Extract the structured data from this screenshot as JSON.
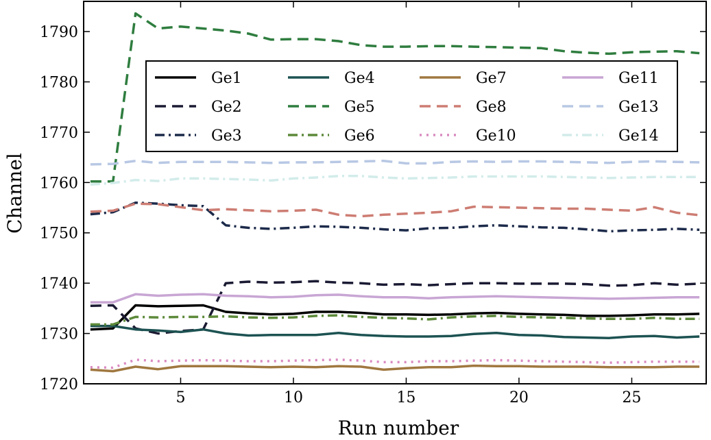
{
  "chart_data": {
    "type": "line",
    "xlabel": "Run number",
    "ylabel": "Channel",
    "xlim": [
      0.7,
      28.3
    ],
    "ylim": [
      1720,
      1796
    ],
    "xticks": [
      5,
      10,
      15,
      20,
      25
    ],
    "yticks": [
      1720,
      1730,
      1740,
      1750,
      1760,
      1770,
      1780,
      1790
    ],
    "legend_position": "top-center",
    "x": [
      1,
      2,
      3,
      4,
      5,
      6,
      7,
      8,
      9,
      10,
      11,
      12,
      13,
      14,
      15,
      16,
      17,
      18,
      19,
      20,
      21,
      22,
      23,
      24,
      25,
      26,
      27,
      28
    ],
    "series": [
      {
        "name": "Ge1",
        "color": "#000000",
        "dash": "solid",
        "values": [
          1730.8,
          1731,
          1735.6,
          1735.4,
          1735.5,
          1735.6,
          1734.3,
          1734,
          1733.8,
          1733.9,
          1734.3,
          1734.3,
          1734.1,
          1733.8,
          1733.8,
          1733.7,
          1733.8,
          1734,
          1734.1,
          1733.9,
          1733.8,
          1733.7,
          1733.5,
          1733.5,
          1733.6,
          1733.8,
          1733.8,
          1733.9
        ]
      },
      {
        "name": "Ge2",
        "color": "#1a1a33",
        "dash": "dash",
        "values": [
          1735.5,
          1735.6,
          1731,
          1730,
          1730.5,
          1730.8,
          1740,
          1740.3,
          1740.1,
          1740.2,
          1740.4,
          1740.1,
          1740,
          1739.7,
          1739.8,
          1739.6,
          1739.8,
          1740,
          1740,
          1739.9,
          1739.9,
          1739.9,
          1739.8,
          1739.5,
          1739.6,
          1740,
          1739.7,
          1739.9
        ]
      },
      {
        "name": "Ge3",
        "color": "#1c2a4a",
        "dash": "dashdot",
        "values": [
          1753.7,
          1754.1,
          1756,
          1755.8,
          1755.5,
          1755.3,
          1751.5,
          1751,
          1750.8,
          1751,
          1751.3,
          1751.2,
          1751,
          1750.7,
          1750.5,
          1750.9,
          1751,
          1751.3,
          1751.5,
          1751.3,
          1751.1,
          1751,
          1750.7,
          1750.3,
          1750.5,
          1750.6,
          1750.8,
          1750.6
        ]
      },
      {
        "name": "Ge4",
        "color": "#1d5252",
        "dash": "solid",
        "values": [
          1731.5,
          1731.5,
          1730.8,
          1730.6,
          1730.3,
          1730.8,
          1730,
          1729.6,
          1729.7,
          1729.7,
          1729.7,
          1730.1,
          1729.7,
          1729.5,
          1729.4,
          1729.4,
          1729.5,
          1729.9,
          1730.1,
          1729.7,
          1729.6,
          1729.3,
          1729.2,
          1729.1,
          1729.4,
          1729.5,
          1729.2,
          1729.4
        ]
      },
      {
        "name": "Ge5",
        "color": "#2f7d3f",
        "dash": "dash",
        "values": [
          1760.2,
          1760.2,
          1793.6,
          1790.6,
          1791,
          1790.6,
          1790.2,
          1789.6,
          1788.4,
          1788.5,
          1788.5,
          1788.1,
          1787.3,
          1787,
          1787,
          1787.1,
          1787.1,
          1787,
          1786.9,
          1786.8,
          1786.7,
          1786.1,
          1785.8,
          1785.6,
          1785.9,
          1786,
          1786.1,
          1785.7
        ]
      },
      {
        "name": "Ge6",
        "color": "#5d8a3a",
        "dash": "dashdot",
        "values": [
          1731.8,
          1731.8,
          1733.3,
          1733.2,
          1733.3,
          1733.3,
          1733.4,
          1733.2,
          1733.1,
          1733.2,
          1733.5,
          1733.6,
          1733.3,
          1733.1,
          1733,
          1732.8,
          1733.2,
          1733.4,
          1733.5,
          1733.3,
          1733.2,
          1733.1,
          1733,
          1732.9,
          1732.9,
          1733.1,
          1732.9,
          1732.9
        ]
      },
      {
        "name": "Ge7",
        "color": "#a07840",
        "dash": "solid",
        "values": [
          1722.8,
          1722.5,
          1723.4,
          1722.9,
          1723.5,
          1723.5,
          1723.5,
          1723.4,
          1723.3,
          1723.4,
          1723.3,
          1723.5,
          1723.4,
          1722.8,
          1723.1,
          1723.3,
          1723.3,
          1723.6,
          1723.5,
          1723.5,
          1723.4,
          1723.4,
          1723.4,
          1723.3,
          1723.3,
          1723.3,
          1723.4,
          1723.4
        ]
      },
      {
        "name": "Ge8",
        "color": "#cd7d73",
        "dash": "dash",
        "values": [
          1754.2,
          1754.4,
          1755.8,
          1755.7,
          1755.1,
          1754.5,
          1754.7,
          1754.5,
          1754.3,
          1754.4,
          1754.6,
          1753.6,
          1753.3,
          1753.6,
          1753.8,
          1754,
          1754.3,
          1755.2,
          1755.1,
          1755,
          1754.9,
          1754.8,
          1754.8,
          1754.6,
          1754.4,
          1755.1,
          1754,
          1753.5
        ]
      },
      {
        "name": "Ge10",
        "color": "#d98ac0",
        "dash": "dot",
        "values": [
          1723.3,
          1723.2,
          1724.8,
          1724.5,
          1724.6,
          1724.7,
          1724.6,
          1724.5,
          1724.5,
          1724.6,
          1724.7,
          1724.8,
          1724.6,
          1724.3,
          1724.3,
          1724.5,
          1724.5,
          1724.6,
          1724.7,
          1724.6,
          1724.5,
          1724.4,
          1724.3,
          1724.2,
          1724.3,
          1724.4,
          1724.4,
          1724.4
        ]
      },
      {
        "name": "Ge11",
        "color": "#c8a6d4",
        "dash": "solid",
        "values": [
          1736.2,
          1736.2,
          1737.8,
          1737.5,
          1737.7,
          1737.8,
          1737.5,
          1737.4,
          1737.2,
          1737.3,
          1737.6,
          1737.7,
          1737.4,
          1737.2,
          1737.2,
          1737,
          1737.2,
          1737.3,
          1737.4,
          1737.3,
          1737.2,
          1737.1,
          1737,
          1736.9,
          1737,
          1737.1,
          1737.2,
          1737.2
        ]
      },
      {
        "name": "Ge13",
        "color": "#b8c8e4",
        "dash": "dash",
        "values": [
          1763.6,
          1763.7,
          1764.3,
          1763.9,
          1764.1,
          1764.1,
          1764.1,
          1764,
          1763.9,
          1764,
          1764,
          1764.1,
          1764.2,
          1764.3,
          1763.8,
          1763.8,
          1764.1,
          1764.2,
          1764.1,
          1764.2,
          1764.2,
          1764.1,
          1764,
          1763.9,
          1764.1,
          1764.2,
          1764.1,
          1764
        ]
      },
      {
        "name": "Ge14",
        "color": "#d2ecea",
        "dash": "dashdot",
        "values": [
          1759.6,
          1759.9,
          1760.5,
          1760.3,
          1760.8,
          1760.8,
          1760.7,
          1760.6,
          1760.4,
          1760.8,
          1761,
          1761.3,
          1761.3,
          1761,
          1760.8,
          1760.9,
          1761,
          1761.2,
          1761.2,
          1761.2,
          1761.2,
          1761.1,
          1761,
          1760.9,
          1761,
          1761.1,
          1761.1,
          1761.1
        ]
      }
    ]
  }
}
